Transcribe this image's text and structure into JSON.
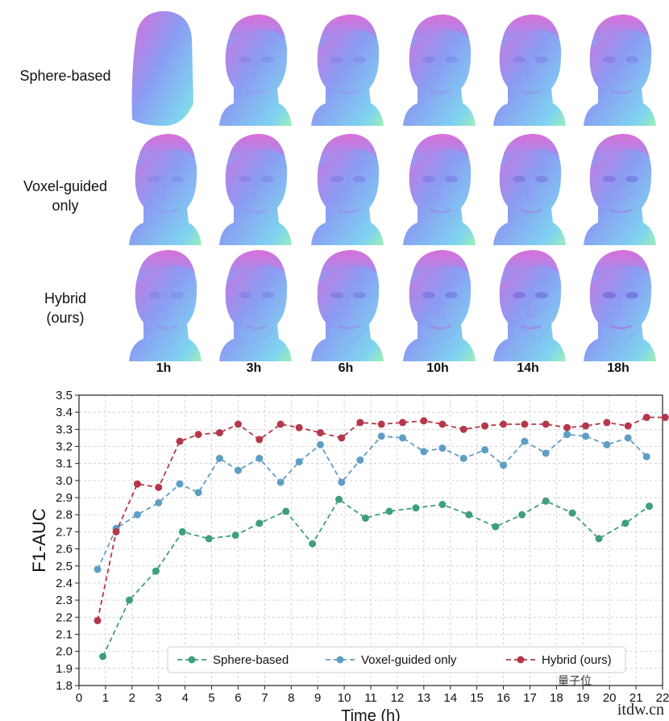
{
  "figure": {
    "row_labels": [
      "Sphere-based",
      "Voxel-guided\nonly",
      "Hybrid\n(ours)"
    ],
    "time_labels": [
      "1h",
      "3h",
      "6h",
      "10h",
      "14h",
      "18h"
    ],
    "watermark": "itdw.cn",
    "watermark_logo": "量子位"
  },
  "colors": {
    "sphere": "#3f9e7f",
    "voxel": "#5f9ec4",
    "hybrid": "#b5384a",
    "grid": "#c8c8c8",
    "head_pink": "#d86fd9",
    "head_blue": "#8a9cf3",
    "head_cyan": "#7fd3f0",
    "head_green": "#9ef0b5"
  },
  "chart_data": {
    "type": "line",
    "xlabel": "Time (h)",
    "ylabel": "F1-AUC",
    "xlim": [
      0,
      22
    ],
    "ylim": [
      1.8,
      3.5
    ],
    "xticks": [
      0,
      1,
      2,
      3,
      4,
      5,
      6,
      7,
      8,
      9,
      10,
      11,
      12,
      13,
      14,
      15,
      16,
      17,
      18,
      19,
      20,
      21,
      22
    ],
    "yticks": [
      1.8,
      1.9,
      2.0,
      2.1,
      2.2,
      2.3,
      2.4,
      2.5,
      2.6,
      2.7,
      2.8,
      2.9,
      3.0,
      3.1,
      3.2,
      3.3,
      3.4,
      3.5
    ],
    "grid": true,
    "legend_position": "bottom-right",
    "series": [
      {
        "name": "Sphere-based",
        "x": [
          0.9,
          1.9,
          2.9,
          3.9,
          4.9,
          5.9,
          6.8,
          7.8,
          8.8,
          9.8,
          10.8,
          11.7,
          12.7,
          13.7,
          14.7,
          15.7,
          16.7,
          17.6,
          18.6,
          19.6,
          20.6,
          21.5
        ],
        "y": [
          1.97,
          2.3,
          2.47,
          2.7,
          2.66,
          2.68,
          2.75,
          2.82,
          2.63,
          2.89,
          2.78,
          2.82,
          2.84,
          2.86,
          2.8,
          2.73,
          2.8,
          2.88,
          2.81,
          2.66,
          2.75,
          2.85
        ]
      },
      {
        "name": "Voxel-guided only",
        "x": [
          0.7,
          1.4,
          2.2,
          3.0,
          3.8,
          4.5,
          5.3,
          6.0,
          6.8,
          7.6,
          8.3,
          9.1,
          9.9,
          10.6,
          11.4,
          12.2,
          13.0,
          13.7,
          14.5,
          15.3,
          16.0,
          16.8,
          17.6,
          18.4,
          19.1,
          19.9,
          20.7,
          21.4
        ],
        "y": [
          2.48,
          2.72,
          2.8,
          2.87,
          2.98,
          2.93,
          3.13,
          3.06,
          3.13,
          2.99,
          3.11,
          3.21,
          2.99,
          3.12,
          3.26,
          3.25,
          3.17,
          3.19,
          3.13,
          3.18,
          3.09,
          3.23,
          3.16,
          3.27,
          3.26,
          3.21,
          3.25,
          3.14
        ]
      },
      {
        "name": "Hybrid (ours)",
        "x": [
          0.7,
          1.4,
          2.2,
          3.0,
          3.8,
          4.5,
          5.3,
          6.0,
          6.8,
          7.6,
          8.3,
          9.1,
          9.9,
          10.6,
          11.4,
          12.2,
          13.0,
          13.7,
          14.5,
          15.3,
          16.0,
          16.8,
          17.6,
          18.4,
          19.1,
          19.9,
          20.7,
          21.4,
          22.1
        ],
        "y": [
          2.18,
          2.7,
          2.98,
          2.96,
          3.23,
          3.27,
          3.28,
          3.33,
          3.24,
          3.33,
          3.31,
          3.28,
          3.25,
          3.34,
          3.33,
          3.34,
          3.35,
          3.33,
          3.3,
          3.32,
          3.33,
          3.33,
          3.33,
          3.31,
          3.32,
          3.34,
          3.32,
          3.37,
          3.37
        ]
      }
    ]
  }
}
